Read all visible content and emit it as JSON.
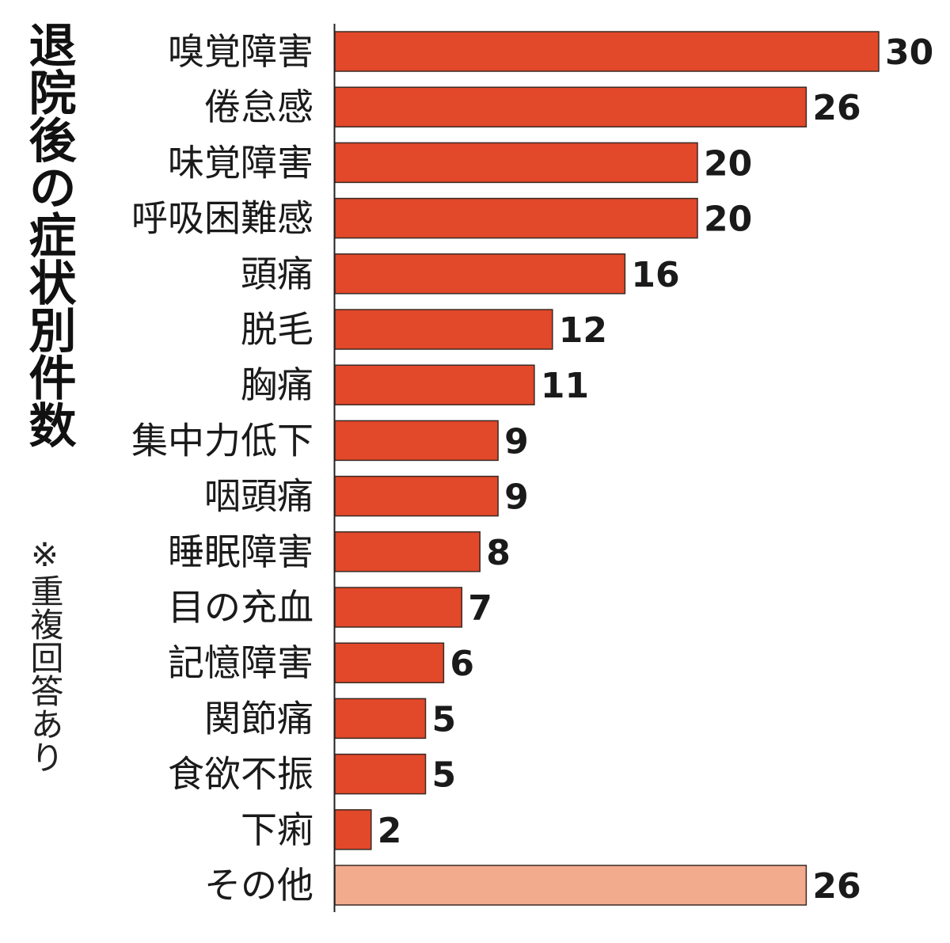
{
  "title": "退院後の症状別件数",
  "note": "※重複回答あり",
  "colors": {
    "bar": "#e2482a",
    "bar_other": "#f3ab8e",
    "bar_stroke": "#3a2a24",
    "axis": "#222222"
  },
  "chart_data": {
    "type": "bar",
    "orientation": "horizontal",
    "title": "退院後の症状別件数",
    "categories": [
      "嗅覚障害",
      "倦怠感",
      "味覚障害",
      "呼吸困難感",
      "頭痛",
      "脱毛",
      "胸痛",
      "集中力低下",
      "咽頭痛",
      "睡眠障害",
      "目の充血",
      "記憶障害",
      "関節痛",
      "食欲不振",
      "下痢",
      "その他"
    ],
    "values": [
      30,
      26,
      20,
      20,
      16,
      12,
      11,
      9,
      9,
      8,
      7,
      6,
      5,
      5,
      2,
      26
    ],
    "xlim": [
      0,
      30
    ],
    "grid": false,
    "legend": "none"
  }
}
